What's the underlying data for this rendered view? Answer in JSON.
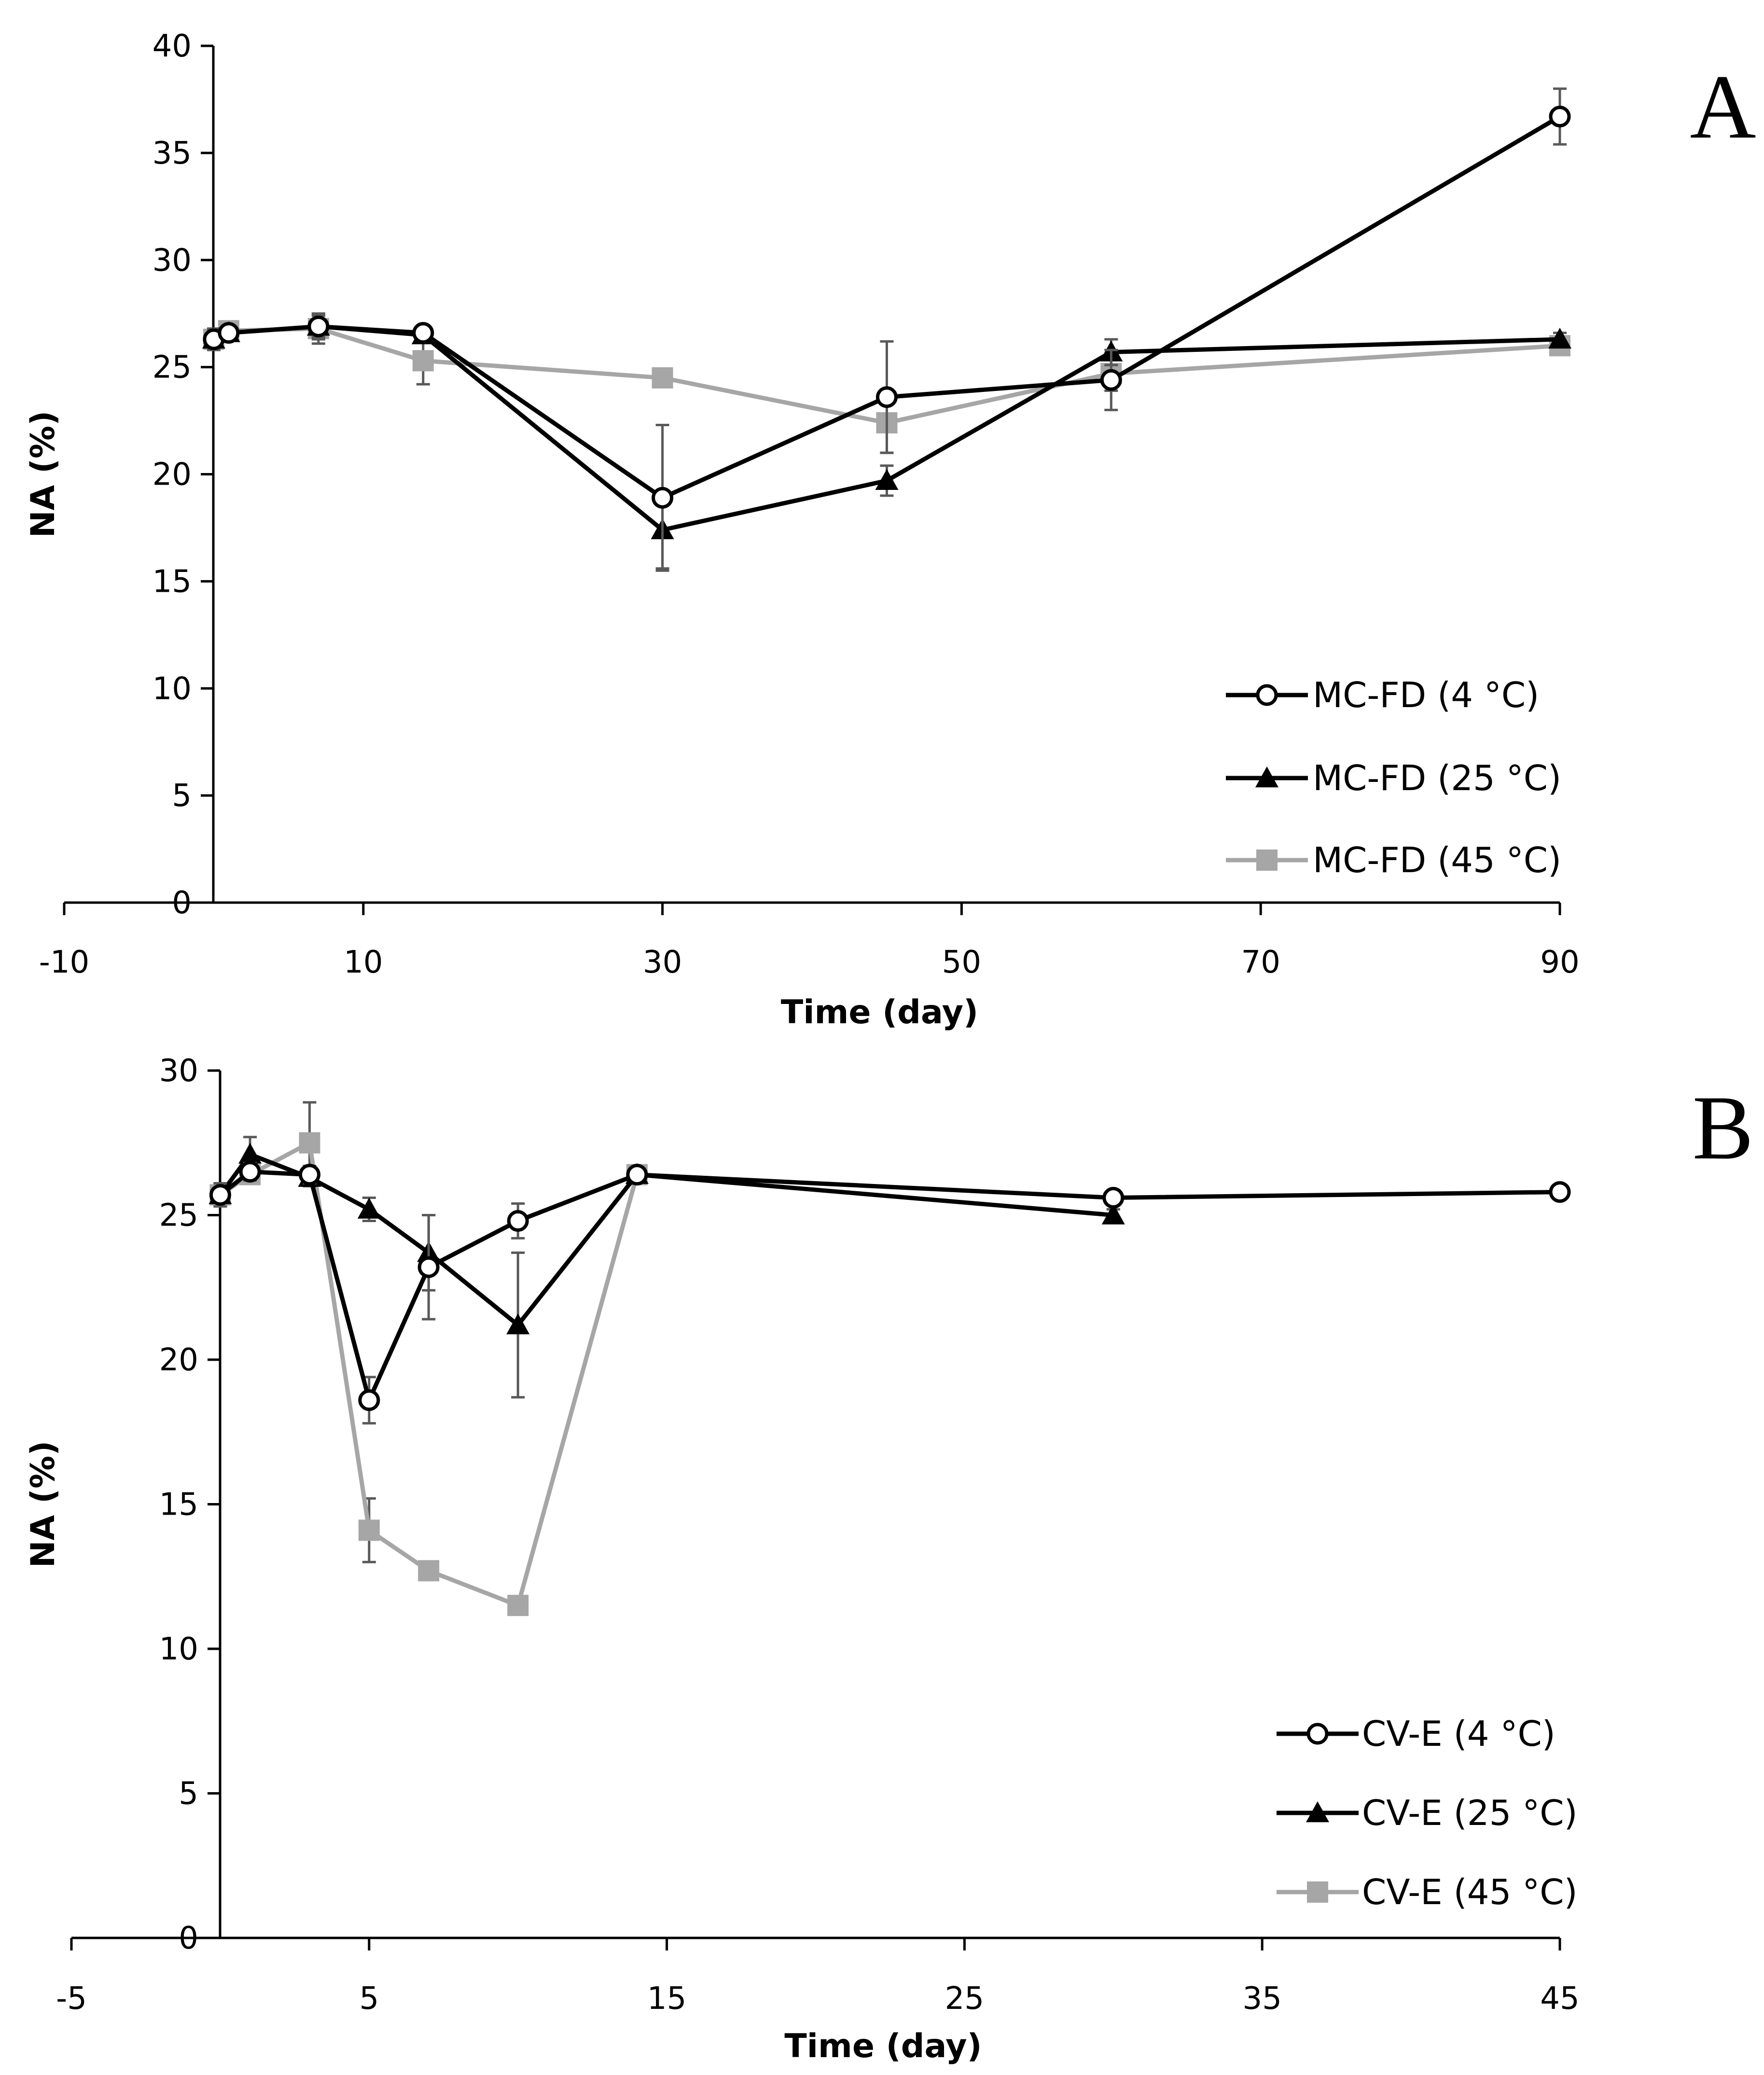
{
  "chart_data": [
    {
      "type": "line",
      "panel_label": "A",
      "xlabel": "Time (day)",
      "ylabel": "NA (%)",
      "xlim": [
        -10,
        90
      ],
      "ylim": [
        0,
        40
      ],
      "x_ticks": [
        "-10",
        "10",
        "30",
        "50",
        "70",
        "90"
      ],
      "y_ticks": [
        "0",
        "5",
        "10",
        "15",
        "20",
        "25",
        "30",
        "35",
        "40"
      ],
      "legend_position": "bottom-right",
      "series": [
        {
          "name": "MC-FD (4 °C)",
          "marker": "circle-open",
          "color": "#000000",
          "x": [
            0,
            1,
            7,
            14,
            30,
            45,
            60,
            90
          ],
          "y": [
            26.3,
            26.6,
            26.9,
            26.6,
            18.9,
            23.6,
            24.4,
            36.7
          ],
          "error": [
            0.5,
            0.3,
            0.6,
            0.3,
            3.4,
            2.6,
            1.4,
            1.3
          ]
        },
        {
          "name": "MC-FD (25 °C)",
          "marker": "triangle-filled",
          "color": "#000000",
          "x": [
            0,
            1,
            7,
            14,
            30,
            45,
            60,
            90
          ],
          "y": [
            26.3,
            26.6,
            26.9,
            26.5,
            17.4,
            19.7,
            25.7,
            26.3
          ],
          "error": [
            0.4,
            0.3,
            0.5,
            0.3,
            1.8,
            0.7,
            0.6,
            0.3
          ]
        },
        {
          "name": "MC-FD (45 °C)",
          "marker": "square-filled",
          "color": "#A6A6A6",
          "x": [
            0,
            1,
            7,
            14,
            30,
            45,
            60,
            90
          ],
          "y": [
            26.3,
            26.7,
            26.8,
            25.3,
            24.5,
            22.4,
            24.7,
            26.0
          ],
          "error": [
            0.4,
            0.3,
            0.7,
            1.1,
            0.2,
            1.4,
            0.8,
            0.2
          ]
        }
      ]
    },
    {
      "type": "line",
      "panel_label": "B",
      "xlabel": "Time (day)",
      "ylabel": "NA (%)",
      "xlim": [
        -5,
        45
      ],
      "ylim": [
        0,
        30
      ],
      "x_ticks": [
        "-5",
        "5",
        "15",
        "25",
        "35",
        "45"
      ],
      "y_ticks": [
        "0",
        "5",
        "10",
        "15",
        "20",
        "25",
        "30"
      ],
      "legend_position": "bottom-right",
      "series": [
        {
          "name": "CV-E (4 °C)",
          "marker": "circle-open",
          "color": "#000000",
          "x": [
            0,
            1,
            3,
            5,
            7,
            10,
            14,
            30,
            45
          ],
          "y": [
            25.7,
            26.5,
            26.4,
            18.6,
            23.2,
            24.8,
            26.4,
            25.6,
            25.8
          ],
          "error": [
            0.4,
            0.3,
            0.3,
            0.8,
            1.8,
            0.6,
            0.2,
            0.2,
            0.2
          ]
        },
        {
          "name": "CV-E (25 °C)",
          "marker": "triangle-filled",
          "color": "#000000",
          "x": [
            0,
            1,
            3,
            5,
            7,
            10,
            14,
            30
          ],
          "y": [
            25.7,
            27.1,
            26.3,
            25.2,
            23.7,
            21.2,
            26.4,
            25.0
          ],
          "error": [
            0.4,
            0.6,
            0.3,
            0.4,
            1.3,
            2.5,
            0.2,
            0.2
          ]
        },
        {
          "name": "CV-E (45 °C)",
          "marker": "square-filled",
          "color": "#A6A6A6",
          "x": [
            0,
            1,
            3,
            5,
            7,
            10,
            14
          ],
          "y": [
            25.7,
            26.4,
            27.5,
            14.1,
            12.7,
            11.5,
            26.4
          ],
          "error": [
            0.4,
            0.3,
            1.4,
            1.1,
            0.2,
            0.2,
            0.2
          ]
        }
      ]
    }
  ]
}
